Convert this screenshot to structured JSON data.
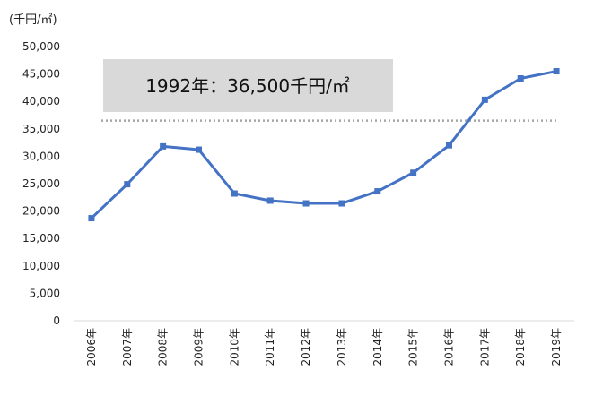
{
  "chart_data": {
    "type": "line",
    "unit_label": "(千円/㎡)",
    "categories": [
      "2006年",
      "2007年",
      "2008年",
      "2009年",
      "2010年",
      "2011年",
      "2012年",
      "2013年",
      "2014年",
      "2015年",
      "2016年",
      "2017年",
      "2018年",
      "2019年"
    ],
    "series": [
      {
        "values": [
          18700,
          24900,
          31800,
          31200,
          23200,
          21900,
          21400,
          21400,
          23600,
          27000,
          32000,
          40300,
          44200,
          45500
        ]
      }
    ],
    "ylim": [
      0,
      50000
    ],
    "yticks": [
      "0",
      "5,000",
      "10,000",
      "15,000",
      "20,000",
      "25,000",
      "30,000",
      "35,000",
      "40,000",
      "45,000",
      "50,000"
    ],
    "reference_line": {
      "value": 36500,
      "label": "1992年：36,500千円/㎡"
    },
    "grid": false,
    "legend": "none",
    "colors": {
      "line": "#4472C4",
      "reference": "#A6A6A6",
      "annotation_bg": "#D9D9D9"
    }
  }
}
